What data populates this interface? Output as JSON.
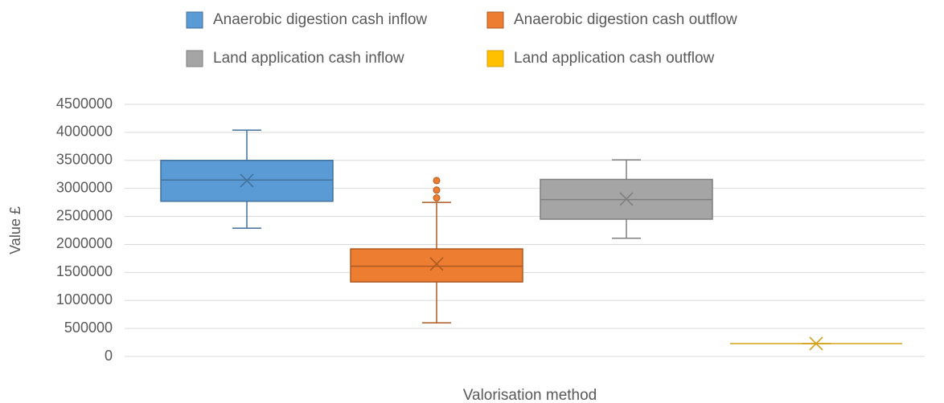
{
  "chart_data": {
    "type": "box",
    "y_label": "Value £",
    "x_label": "Valorisation method",
    "ylim": [
      0,
      4500000
    ],
    "yticks": [
      0,
      500000,
      1000000,
      1500000,
      2000000,
      2500000,
      3000000,
      3500000,
      4000000,
      4500000
    ],
    "grid": true,
    "legend": "top",
    "series": [
      {
        "name": "Anaerobic digestion cash inflow",
        "color": "#5b9bd5",
        "stroke": "#41719c",
        "min": 2290000,
        "q1": 2770000,
        "median": 3150000,
        "q3": 3500000,
        "max": 4040000,
        "mean": 3140000,
        "outliers": []
      },
      {
        "name": "Anaerobic digestion cash outflow",
        "color": "#ed7d31",
        "stroke": "#ae5a21",
        "min": 600000,
        "q1": 1330000,
        "median": 1610000,
        "q3": 1920000,
        "max": 2750000,
        "mean": 1650000,
        "outliers": [
          2830000,
          2970000,
          3140000
        ]
      },
      {
        "name": "Land application cash inflow",
        "color": "#a5a5a5",
        "stroke": "#7f7f7f",
        "min": 2110000,
        "q1": 2450000,
        "median": 2800000,
        "q3": 3160000,
        "max": 3510000,
        "mean": 2810000,
        "outliers": []
      },
      {
        "name": "Land application cash outflow",
        "color": "#ffc000",
        "stroke": "#d4a017",
        "min": 230000,
        "q1": 230000,
        "median": 230000,
        "q3": 230000,
        "max": 230000,
        "mean": 230000,
        "outliers": []
      }
    ]
  }
}
